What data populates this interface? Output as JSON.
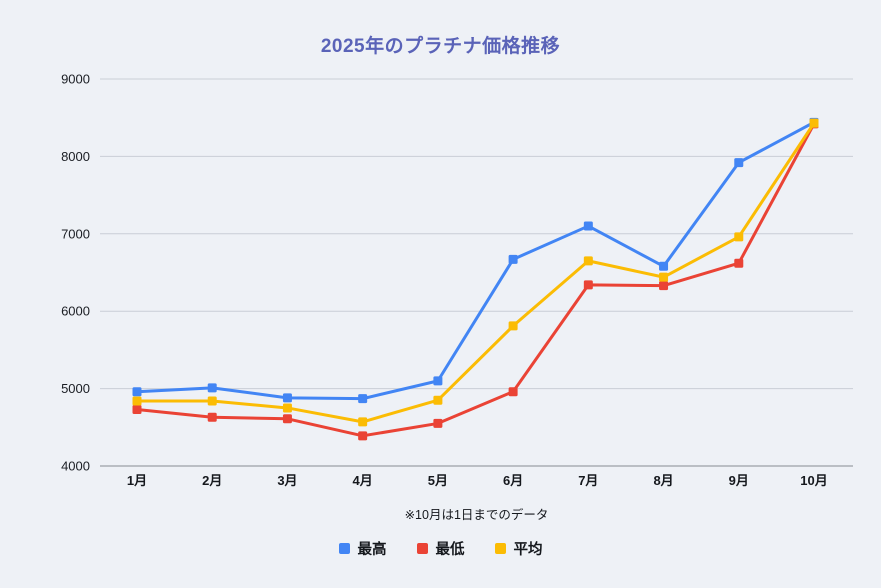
{
  "page": {
    "title": "2025年のプラチナ価格推移",
    "footnote": "※10月は1日までのデータ"
  },
  "colors": {
    "background": "#EEF1F6",
    "title": "#5A63B8",
    "gridline": "#C9CED6",
    "axis_line": "#9AA0A6",
    "tick_text": "#15181D"
  },
  "chart_data": {
    "type": "line",
    "title": "2025年のプラチナ価格推移",
    "categories": [
      "1月",
      "2月",
      "3月",
      "4月",
      "5月",
      "6月",
      "7月",
      "8月",
      "9月",
      "10月"
    ],
    "series": [
      {
        "name": "最高",
        "color": "#4285F4",
        "values": [
          4960,
          5010,
          4880,
          4870,
          5100,
          6670,
          7100,
          6580,
          7920,
          8440
        ]
      },
      {
        "name": "最低",
        "color": "#EA4335",
        "values": [
          4730,
          4630,
          4610,
          4390,
          4550,
          4960,
          6340,
          6330,
          6620,
          8420
        ]
      },
      {
        "name": "平均",
        "color": "#FBBC04",
        "values": [
          4840,
          4840,
          4750,
          4570,
          4850,
          5810,
          6650,
          6440,
          6960,
          8430
        ]
      }
    ],
    "ylim": [
      4000,
      9000
    ],
    "y_ticks": [
      4000,
      5000,
      6000,
      7000,
      8000,
      9000
    ],
    "xlabel": "",
    "ylabel": "",
    "grid": true,
    "marker": "square",
    "legend_position": "bottom",
    "annotation": "※10月は1日までのデータ"
  }
}
